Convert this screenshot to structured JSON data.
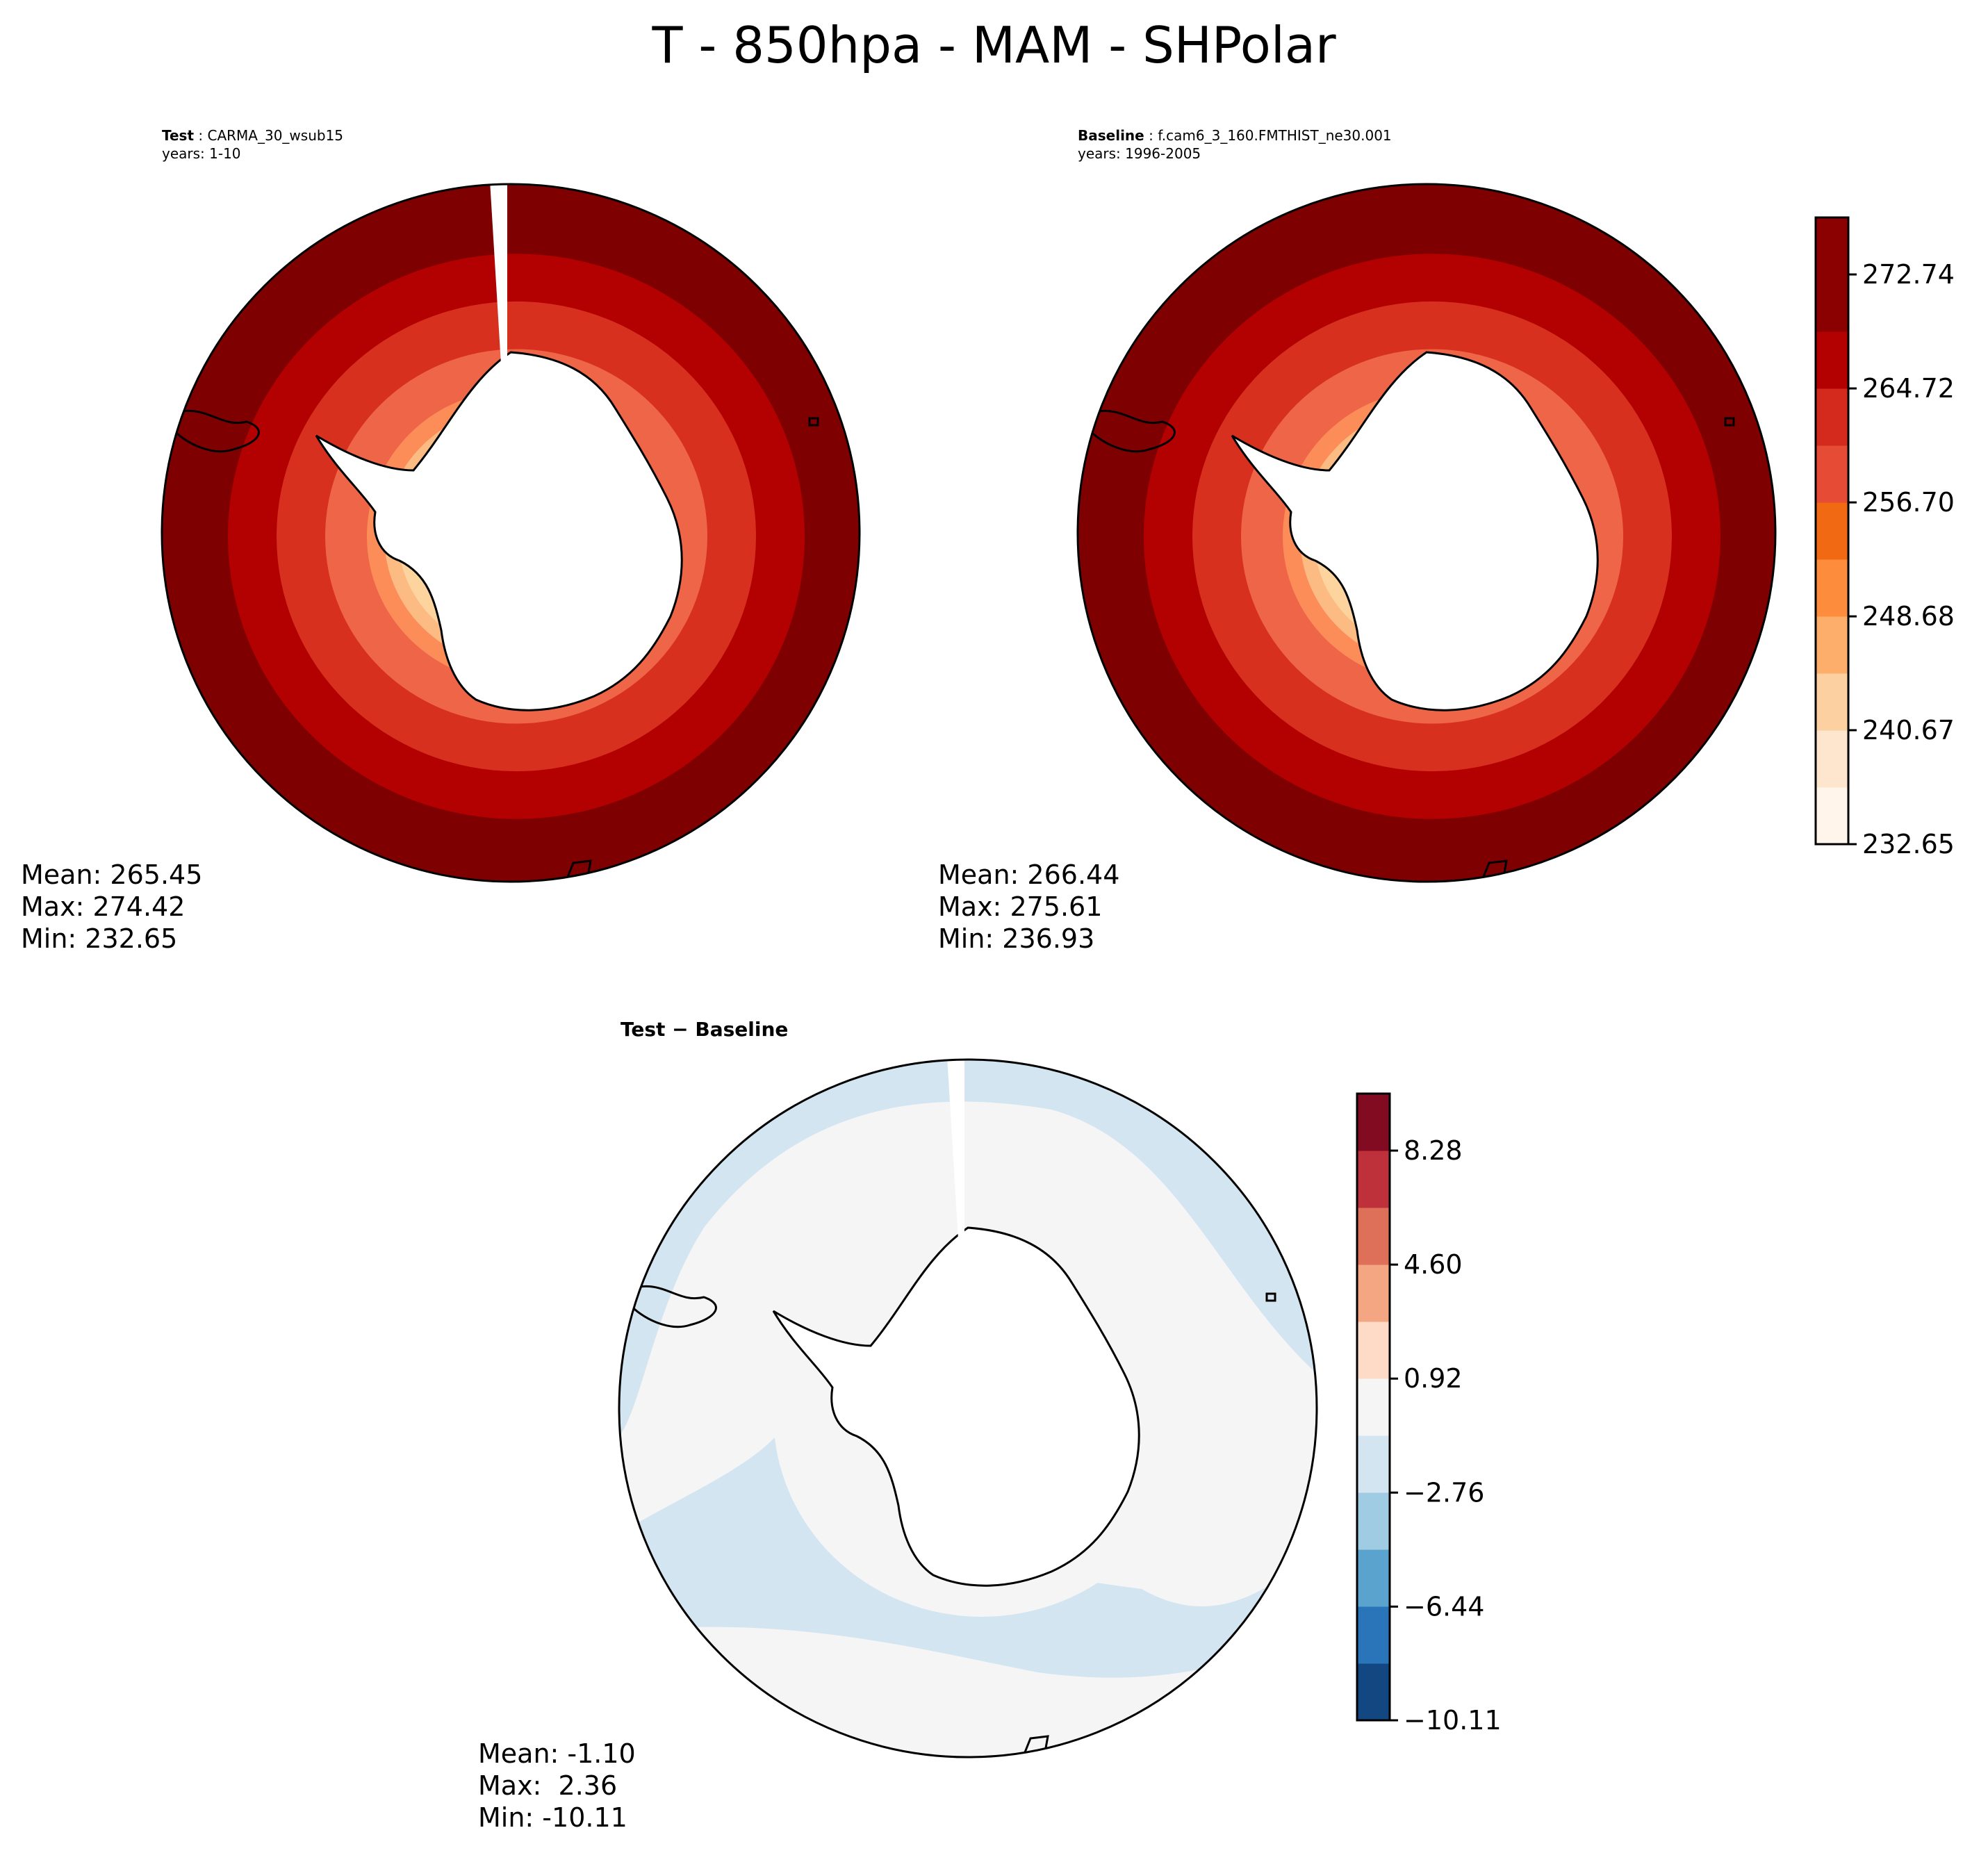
{
  "title": "T - 850hpa - MAM - SHPolar",
  "panels": [
    {
      "id": "test",
      "label": "Test",
      "case": "CARMA_30_wsub15",
      "years": "years: 1-10",
      "stats": {
        "mean": "Mean: 265.45",
        "max": "Max: 274.42",
        "min": "Min: 232.65"
      }
    },
    {
      "id": "baseline",
      "label": "Baseline",
      "case": "f.cam6_3_160.FMTHIST_ne30.001",
      "years": "years: 1996-2005",
      "stats": {
        "mean": "Mean: 266.44",
        "max": "Max: 275.61",
        "min": "Min: 236.93"
      }
    },
    {
      "id": "diff",
      "label": "Test − Baseline",
      "stats": {
        "mean": "Mean: -1.10",
        "max": "Max:  2.36",
        "min": "Min: -10.11"
      }
    }
  ],
  "colors": {
    "abs_levels": [
      "#fff5eb",
      "#fee6ce",
      "#fdd0a2",
      "#fdae6b",
      "#fd8d3c",
      "#f16913",
      "#e64b35",
      "#d42a1e",
      "#b30000",
      "#8b0000"
    ],
    "map_levels": [
      "#fdd49e",
      "#fdbb84",
      "#fc8d59",
      "#ef6548",
      "#d7301f",
      "#b30000",
      "#7f0000"
    ],
    "diff_levels": [
      "#124782",
      "#2a74b9",
      "#5ba3cf",
      "#a0cce3",
      "#d3e5f1",
      "#f5f5f5",
      "#fddbc7",
      "#f4a683",
      "#de6f58",
      "#be303a",
      "#820b22"
    ],
    "land": "#ffffff",
    "coast": "#000000"
  },
  "chart_data": [
    {
      "type": "heatmap",
      "panel": "Test",
      "projection": "south-polar-stereographic",
      "field": "T at 850hPa",
      "season": "MAM",
      "colorbar": null,
      "stats": {
        "mean": 265.45,
        "max": 274.42,
        "min": 232.65
      },
      "ring_levels_outer_to_inner": [
        272.74,
        268.73,
        264.72,
        260.71,
        256.7,
        252.69,
        248.68
      ]
    },
    {
      "type": "heatmap",
      "panel": "Baseline",
      "projection": "south-polar-stereographic",
      "colorbar": {
        "placement": "right",
        "tick_labels": [
          "232.65",
          "240.67",
          "248.68",
          "256.70",
          "264.72",
          "272.74"
        ],
        "range": [
          232.65,
          276.75
        ],
        "bins": 11
      },
      "stats": {
        "mean": 266.44,
        "max": 275.61,
        "min": 236.93
      }
    },
    {
      "type": "heatmap",
      "panel": "Test − Baseline",
      "projection": "south-polar-stereographic",
      "colorbar": {
        "placement": "right",
        "tick_labels": [
          "−10.11",
          "−6.44",
          "−2.76",
          "0.92",
          "4.60",
          "8.28"
        ],
        "range": [
          -10.11,
          10.12
        ],
        "bins": 11
      },
      "stats": {
        "mean": -1.1,
        "max": 2.36,
        "min": -10.11
      }
    }
  ]
}
